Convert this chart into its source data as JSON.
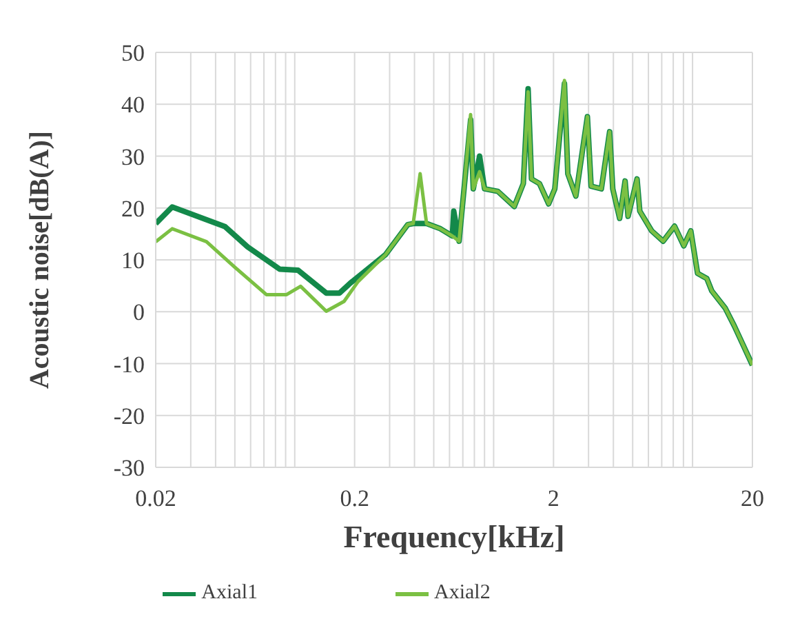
{
  "chart_data": {
    "type": "line",
    "xlabel": "Frequency[kHz]",
    "ylabel": "Acoustic noise[dB(A)]",
    "log": "x",
    "xlim": [
      0.02,
      20
    ],
    "ylim": [
      -30,
      50
    ],
    "xticks": [
      0.02,
      {
        "value": 0.03,
        "label": null
      },
      {
        "value": 0.04,
        "label": null
      },
      {
        "value": 0.05,
        "label": null
      },
      {
        "value": 0.06,
        "label": null
      },
      {
        "value": 0.07,
        "label": null
      },
      {
        "value": 0.08,
        "label": null
      },
      {
        "value": 0.09,
        "label": null
      },
      {
        "value": 0.1,
        "label": null
      },
      0.2,
      {
        "value": 0.3,
        "label": null
      },
      {
        "value": 0.4,
        "label": null
      },
      {
        "value": 0.5,
        "label": null
      },
      {
        "value": 0.6,
        "label": null
      },
      {
        "value": 0.7,
        "label": null
      },
      {
        "value": 0.8,
        "label": null
      },
      {
        "value": 0.9,
        "label": null
      },
      {
        "value": 1,
        "label": null
      },
      2,
      {
        "value": 3,
        "label": null
      },
      {
        "value": 4,
        "label": null
      },
      {
        "value": 5,
        "label": null
      },
      {
        "value": 6,
        "label": null
      },
      {
        "value": 7,
        "label": null
      },
      {
        "value": 8,
        "label": null
      },
      {
        "value": 9,
        "label": null
      },
      {
        "value": 10,
        "label": null
      },
      20
    ],
    "yticks": [
      -30,
      -20,
      -10,
      0,
      10,
      20,
      30,
      40,
      50
    ],
    "grid": true,
    "legend": "bottom",
    "marker": "none",
    "line_style": "solid",
    "series": [
      {
        "name": "Axial1",
        "color": "#13894a",
        "x": [
          0.02,
          0.0242,
          0.0446,
          0.058,
          0.084,
          0.104,
          0.144,
          0.168,
          0.19,
          0.286,
          0.37,
          0.394,
          0.46,
          0.54,
          0.62,
          0.63,
          0.67,
          0.71,
          0.766,
          0.79,
          0.85,
          0.9,
          1.05,
          1.27,
          1.41,
          1.49,
          1.55,
          1.7,
          1.89,
          2.03,
          2.27,
          2.36,
          2.59,
          2.96,
          3.09,
          3.48,
          3.83,
          3.97,
          4.3,
          4.58,
          4.74,
          5.26,
          5.43,
          6.23,
          7.12,
          8.12,
          9.04,
          9.8,
          10.6,
          11.8,
          12.5,
          14.6,
          16.2,
          18,
          20
        ],
        "values": [
          17,
          20.2,
          16.4,
          12.5,
          8.2,
          8,
          3.6,
          3.6,
          5.5,
          11,
          16.8,
          17,
          17,
          16,
          14.6,
          19.4,
          13.6,
          23.7,
          37,
          23.7,
          30,
          23.7,
          23.2,
          20.3,
          24.7,
          43,
          25.6,
          24.7,
          20.8,
          23.7,
          44,
          26.6,
          22.3,
          37.6,
          24.2,
          23.7,
          34.7,
          23.7,
          18,
          25.2,
          18.4,
          25.6,
          19.4,
          15.6,
          13.6,
          16.5,
          12.7,
          15.6,
          7.4,
          6.4,
          4,
          0.7,
          -2.7,
          -6.5,
          -10.3
        ]
      },
      {
        "name": "Axial2",
        "color": "#7bc043",
        "x": [
          0.02,
          0.0242,
          0.036,
          0.0496,
          0.072,
          0.091,
          0.107,
          0.144,
          0.177,
          0.208,
          0.286,
          0.37,
          0.394,
          0.427,
          0.46,
          0.54,
          0.62,
          0.67,
          0.71,
          0.766,
          0.79,
          0.85,
          0.9,
          1.05,
          1.27,
          1.41,
          1.49,
          1.55,
          1.7,
          1.89,
          2.03,
          2.27,
          2.36,
          2.59,
          2.96,
          3.09,
          3.48,
          3.83,
          3.97,
          4.3,
          4.58,
          4.74,
          5.26,
          5.43,
          6.23,
          7.12,
          8.12,
          9.04,
          9.8,
          10.6,
          11.8,
          12.5,
          14.6,
          16.2,
          18,
          20
        ],
        "values": [
          13.5,
          16,
          13.5,
          8.7,
          3.3,
          3.3,
          4.9,
          0.1,
          2,
          5.8,
          11,
          16.8,
          17,
          26.6,
          17,
          16,
          14.6,
          13.6,
          23.7,
          38,
          23.7,
          27,
          23.7,
          23.2,
          20.3,
          24.7,
          42.4,
          25.6,
          24.7,
          20.8,
          23.7,
          44.6,
          26.6,
          22.3,
          37.6,
          24.2,
          23.7,
          34.7,
          23.7,
          18,
          25.2,
          18.4,
          25.6,
          19.4,
          15.6,
          13.6,
          16.5,
          12.7,
          15.6,
          7.4,
          6.4,
          4,
          0.7,
          -2.7,
          -6.5,
          -10.3
        ]
      }
    ]
  }
}
